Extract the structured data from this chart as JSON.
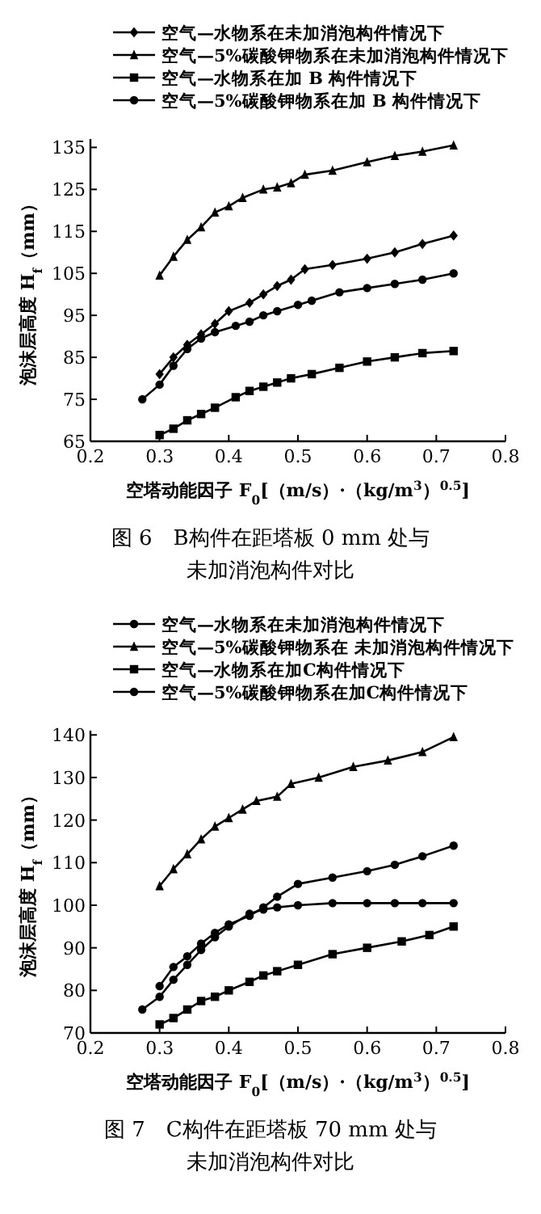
{
  "chart_data": [
    {
      "type": "line",
      "title": "图 6　B构件在距塔板 0 mm 处与未加消泡构件对比",
      "xlabel": "空塔动能因子 F$_{0}$[（m/s）·（kg/m$^{3}$）$^{0.5}$]",
      "ylabel": "泡沫层高度 H$_{f}$（mm）",
      "xlim": [
        0.2,
        0.8
      ],
      "xticks": [
        0.2,
        0.3,
        0.4,
        0.5,
        0.6,
        0.7,
        0.8
      ],
      "ylim": [
        65,
        137
      ],
      "yticks": [
        65,
        75,
        85,
        95,
        105,
        115,
        125,
        135
      ],
      "legend": "top",
      "grid": false,
      "series": [
        {
          "name": "空气—水物系在未加消泡构件情况下",
          "color": "#000000",
          "marker": "diamond",
          "x": [
            0.3,
            0.32,
            0.34,
            0.36,
            0.38,
            0.4,
            0.43,
            0.45,
            0.47,
            0.49,
            0.51,
            0.55,
            0.6,
            0.64,
            0.68,
            0.725
          ],
          "values": [
            81,
            85,
            88,
            90.5,
            93,
            96,
            98,
            100,
            102,
            103.5,
            106,
            107,
            108.5,
            110,
            112,
            114
          ]
        },
        {
          "name": "空气—5%碳酸钾物系在未加消泡构件情况下",
          "color": "#000000",
          "marker": "triangle",
          "x": [
            0.3,
            0.32,
            0.34,
            0.36,
            0.38,
            0.4,
            0.42,
            0.45,
            0.47,
            0.49,
            0.51,
            0.55,
            0.6,
            0.64,
            0.68,
            0.725
          ],
          "values": [
            104.5,
            109,
            113,
            116,
            119.5,
            121,
            123,
            125,
            125.5,
            126.5,
            128.5,
            129.5,
            131.5,
            133,
            134,
            135.5
          ]
        },
        {
          "name": "空气—水物系在加 B 构件情况下",
          "color": "#000000",
          "marker": "square",
          "x": [
            0.3,
            0.32,
            0.34,
            0.36,
            0.38,
            0.41,
            0.43,
            0.45,
            0.47,
            0.49,
            0.52,
            0.56,
            0.6,
            0.64,
            0.68,
            0.725
          ],
          "values": [
            66.5,
            68,
            70,
            71.5,
            73,
            75.5,
            77,
            78,
            79,
            80,
            81,
            82.5,
            84,
            85,
            86,
            86.5
          ]
        },
        {
          "name": "空气—5%碳酸钾物系在加 B 构件情况下",
          "color": "#000000",
          "marker": "circle",
          "x": [
            0.275,
            0.3,
            0.32,
            0.34,
            0.36,
            0.38,
            0.41,
            0.43,
            0.45,
            0.47,
            0.5,
            0.52,
            0.56,
            0.6,
            0.64,
            0.68,
            0.725
          ],
          "values": [
            75,
            78.5,
            83,
            87,
            89.5,
            91,
            92.5,
            93.5,
            95,
            96,
            97.5,
            98.5,
            100.5,
            101.5,
            102.5,
            103.5,
            105
          ]
        }
      ]
    },
    {
      "type": "line",
      "title": "图 7　C构件在距塔板 70 mm 处与未加消泡构件对比",
      "xlabel": "空塔动能因子 F$_{0}$[（m/s）·（kg/m$^{3}$）$^{0.5}$]",
      "ylabel": "泡沫层高度 H$_{f}$（mm）",
      "xlim": [
        0.2,
        0.8
      ],
      "xticks": [
        0.2,
        0.3,
        0.4,
        0.5,
        0.6,
        0.7,
        0.8
      ],
      "ylim": [
        70,
        141
      ],
      "yticks": [
        70,
        80,
        90,
        100,
        110,
        120,
        130,
        140
      ],
      "legend": "top",
      "grid": false,
      "series": [
        {
          "name": "空气—水物系在未加消泡构件情况下",
          "color": "#000000",
          "marker": "circle",
          "x": [
            0.3,
            0.32,
            0.34,
            0.36,
            0.38,
            0.4,
            0.43,
            0.45,
            0.47,
            0.5,
            0.55,
            0.6,
            0.64,
            0.68,
            0.725
          ],
          "values": [
            81,
            85.5,
            88,
            91,
            93.5,
            95.5,
            97.5,
            99.5,
            102,
            105,
            106.5,
            108,
            109.5,
            111.5,
            114
          ]
        },
        {
          "name": "空气—5%碳酸钾物系在 未加消泡构件情况下",
          "color": "#000000",
          "marker": "triangle",
          "x": [
            0.3,
            0.32,
            0.34,
            0.36,
            0.38,
            0.4,
            0.42,
            0.44,
            0.47,
            0.49,
            0.53,
            0.58,
            0.63,
            0.68,
            0.725
          ],
          "values": [
            104.5,
            108.5,
            112,
            115.5,
            118.5,
            120.5,
            122.5,
            124.5,
            125.5,
            128.5,
            130,
            132.5,
            134,
            136,
            139.5
          ]
        },
        {
          "name": "空气—水物系在加C构件情况下",
          "color": "#000000",
          "marker": "square",
          "x": [
            0.3,
            0.32,
            0.34,
            0.36,
            0.38,
            0.4,
            0.43,
            0.45,
            0.47,
            0.5,
            0.55,
            0.6,
            0.65,
            0.69,
            0.725
          ],
          "values": [
            72,
            73.5,
            75.5,
            77.5,
            78.5,
            80,
            82,
            83.5,
            84.5,
            86,
            88.5,
            90,
            91.5,
            93,
            95
          ]
        },
        {
          "name": "空气—5%碳酸钾物系在加C构件情况下",
          "color": "#000000",
          "marker": "circle",
          "x": [
            0.275,
            0.3,
            0.32,
            0.34,
            0.36,
            0.38,
            0.4,
            0.43,
            0.45,
            0.47,
            0.5,
            0.55,
            0.6,
            0.64,
            0.68,
            0.725
          ],
          "values": [
            75.5,
            78.5,
            82.5,
            86,
            89.5,
            92.5,
            95,
            98,
            99,
            99.5,
            100,
            100.5,
            100.5,
            100.5,
            100.5,
            100.5
          ]
        }
      ]
    }
  ]
}
